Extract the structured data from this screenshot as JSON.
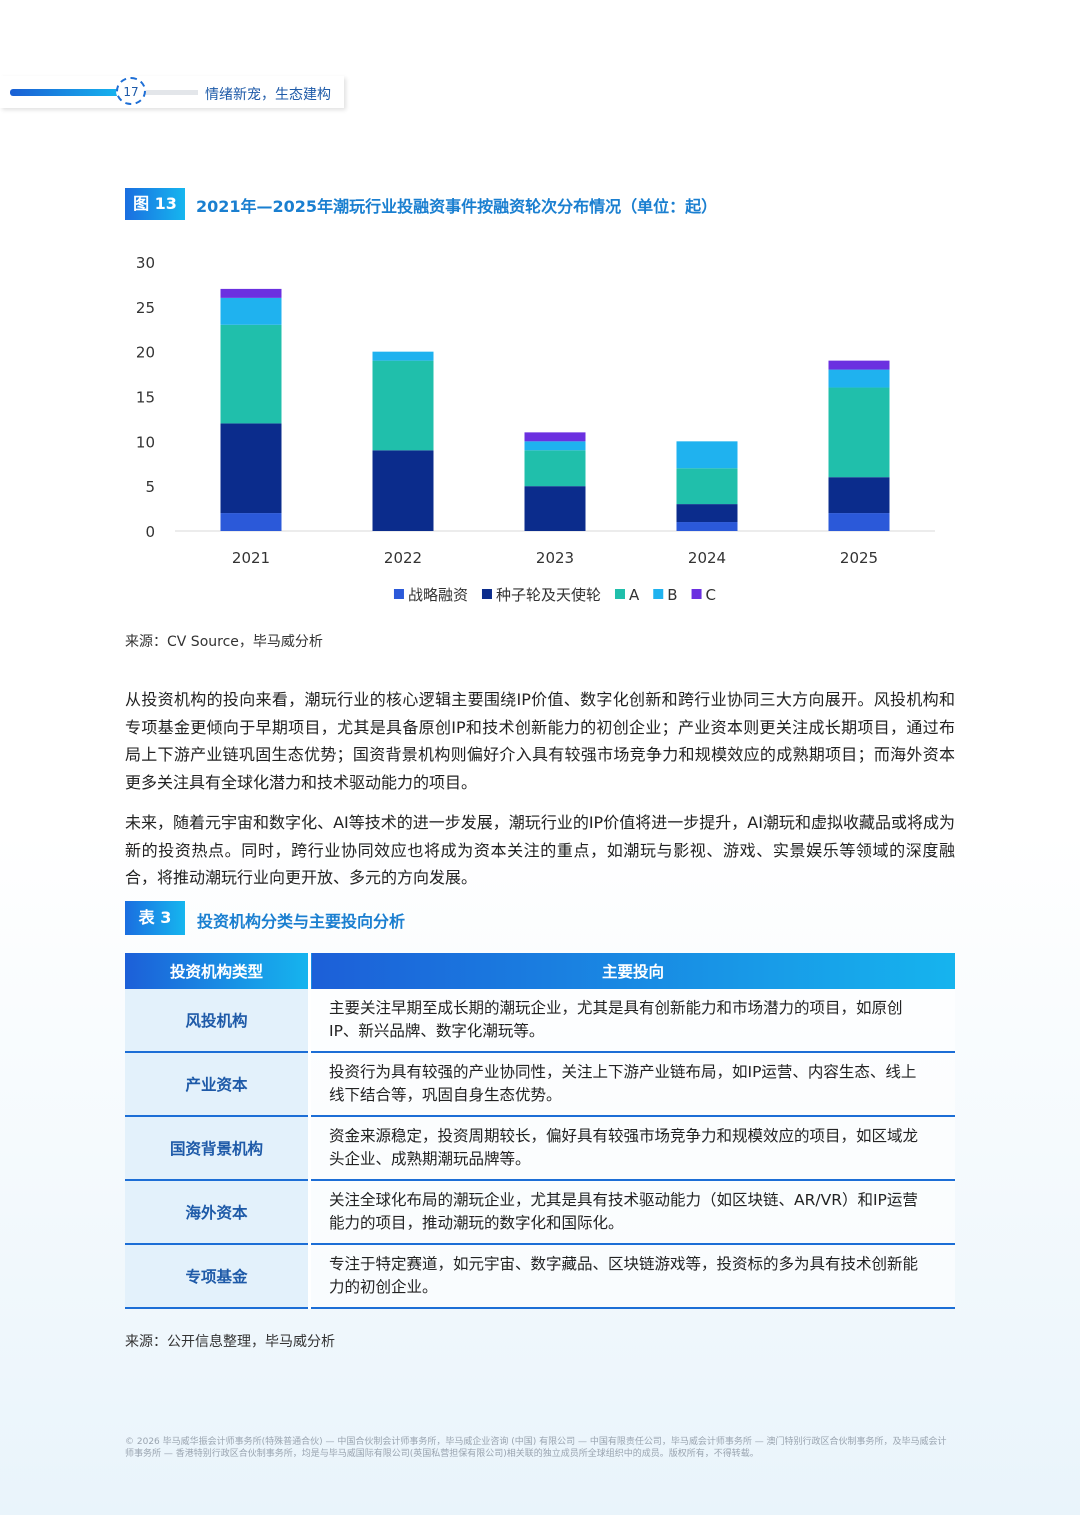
{
  "header": {
    "page_number": "17",
    "title": "情绪新宠，生态建构"
  },
  "figure": {
    "label": "图 13",
    "source": "来源：CV Source，毕马威分析"
  },
  "chart_data": {
    "type": "stacked-bar",
    "title": "2021年—2025年潮玩行业投融资事件按融资轮次分布情况（单位：起）",
    "categories": [
      "2021",
      "2022",
      "2023",
      "2024",
      "2025"
    ],
    "series": [
      {
        "name": "战略融资",
        "color": "#2b59d9",
        "values": [
          2,
          0,
          0,
          1,
          2
        ]
      },
      {
        "name": "种子轮及天使轮",
        "color": "#0b2c8c",
        "values": [
          10,
          9,
          5,
          2,
          4
        ]
      },
      {
        "name": "A",
        "color": "#20bfab",
        "values": [
          11,
          10,
          4,
          4,
          10
        ]
      },
      {
        "name": "B",
        "color": "#1fb2ef",
        "values": [
          3,
          1,
          1,
          3,
          2
        ]
      },
      {
        "name": "C",
        "color": "#6b30e0",
        "values": [
          1,
          0,
          1,
          0,
          1
        ]
      }
    ],
    "ylim": [
      0,
      30
    ],
    "yticks": [
      0,
      5,
      10,
      15,
      20,
      25,
      30
    ],
    "grid": false,
    "legend": "bottom"
  },
  "paragraphs": [
    "从投资机构的投向来看，潮玩行业的核心逻辑主要围绕IP价值、数字化创新和跨行业协同三大方向展开。风投机构和专项基金更倾向于早期项目，尤其是具备原创IP和技术创新能力的初创企业；产业资本则更关注成长期项目，通过布局上下游产业链巩固生态优势；国资背景机构则偏好介入具有较强市场竞争力和规模效应的成熟期项目；而海外资本更多关注具有全球化潜力和技术驱动能力的项目。",
    "未来，随着元宇宙和数字化、AI等技术的进一步发展，潮玩行业的IP价值将进一步提升，AI潮玩和虚拟收藏品或将成为新的投资热点。同时，跨行业协同效应也将成为资本关注的重点，如潮玩与影视、游戏、实景娱乐等领域的深度融合，将推动潮玩行业向更开放、多元的方向发展。"
  ],
  "table": {
    "label": "表 3",
    "title": "投资机构分类与主要投向分析",
    "headers": [
      "投资机构类型",
      "主要投向"
    ],
    "rows": [
      [
        "风投机构",
        "主要关注早期至成长期的潮玩企业，尤其是具有创新能力和市场潜力的项目，如原创IP、新兴品牌、数字化潮玩等。"
      ],
      [
        "产业资本",
        "投资行为具有较强的产业协同性，关注上下游产业链布局，如IP运营、内容生态、线上线下结合等，巩固自身生态优势。"
      ],
      [
        "国资背景机构",
        "资金来源稳定，投资周期较长，偏好具有较强市场竞争力和规模效应的项目，如区域龙头企业、成熟期潮玩品牌等。"
      ],
      [
        "海外资本",
        "关注全球化布局的潮玩企业，尤其是具有技术驱动能力（如区块链、AR/VR）和IP运营能力的项目，推动潮玩的数字化和国际化。"
      ],
      [
        "专项基金",
        "专注于特定赛道，如元宇宙、数字藏品、区块链游戏等，投资标的多为具有技术创新能力的初创企业。"
      ]
    ],
    "source": "来源：公开信息整理，毕马威分析"
  },
  "footer": "© 2026 毕马威华振会计师事务所(特殊普通合伙) — 中国合伙制会计师事务所，毕马威企业咨询 (中国) 有限公司 — 中国有限责任公司，毕马威会计师事务所 — 澳门特别行政区合伙制事务所，及毕马威会计师事务所 — 香港特别行政区合伙制事务所，均是与毕马威国际有限公司(英国私营担保有限公司)相关联的独立成员所全球组织中的成员。版权所有，不得转载。"
}
